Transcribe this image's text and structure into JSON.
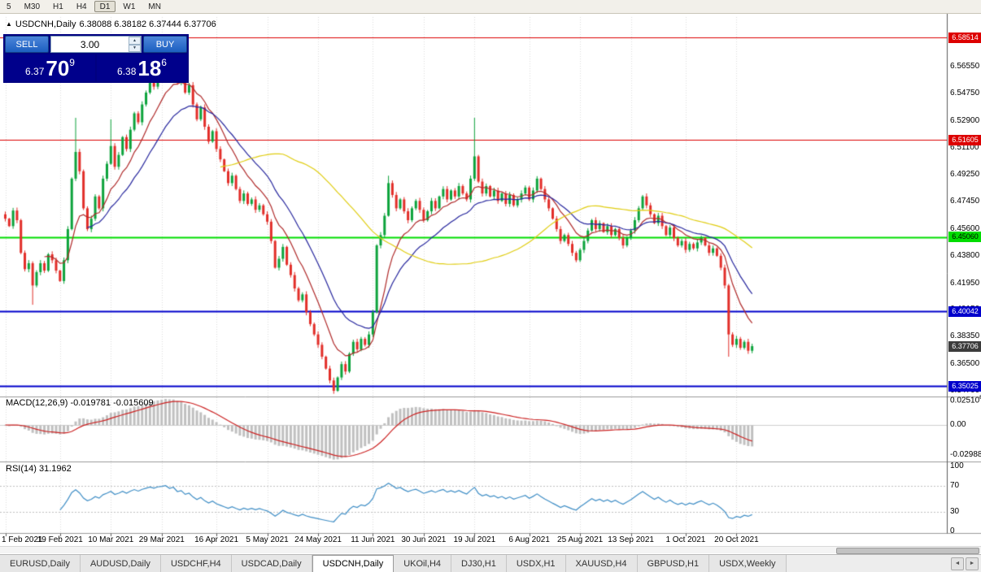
{
  "toolbar": {
    "items": [
      "5",
      "M30",
      "H1",
      "H4",
      "D1",
      "W1",
      "MN"
    ],
    "active": "D1"
  },
  "chart": {
    "header": {
      "marker": "▲",
      "title": "USDCNH,Daily",
      "ohlc": "6.38088 6.38182 6.37444 6.37706"
    },
    "current_price": {
      "label": "6.37706",
      "price": 6.37706,
      "bg": "#3c3c3c",
      "text": "#ffffff"
    },
    "hlines": [
      {
        "price": 6.58514,
        "label": "6.58514",
        "color": "#dd0000",
        "width": 1,
        "text": "#ffffff"
      },
      {
        "price": 6.51605,
        "label": "6.51605",
        "color": "#dd0000",
        "width": 1,
        "text": "#ffffff"
      },
      {
        "price": 6.4506,
        "label": "6.45060",
        "color": "#00dd00",
        "width": 2,
        "text": "#000000"
      },
      {
        "price": 6.40042,
        "label": "6.40042",
        "color": "#0000cc",
        "width": 2,
        "text": "#ffffff"
      },
      {
        "price": 6.35025,
        "label": "6.35025",
        "color": "#0000cc",
        "width": 2,
        "text": "#ffffff"
      }
    ],
    "y_ticks": [
      "6.56550",
      "6.54750",
      "6.52900",
      "6.51100",
      "6.49250",
      "6.47450",
      "6.45600",
      "6.43800",
      "6.41950",
      "6.40150",
      "6.38350",
      "6.36500",
      "6.34700"
    ],
    "macd": {
      "header": "MACD(12,26,9) -0.019781 -0.015609",
      "scale": [
        {
          "t": "0.02510",
          "s": "8",
          "v": 0.025108
        },
        {
          "t": "0.00",
          "s": "",
          "v": 0
        },
        {
          "t": "-0.02988",
          "s": "",
          "v": -0.02988
        }
      ]
    },
    "rsi": {
      "header": "RSI(14) 31.1962",
      "scale": [
        {
          "t": "100",
          "v": 100
        },
        {
          "t": "70",
          "v": 70
        },
        {
          "t": "30",
          "v": 30
        },
        {
          "t": "0",
          "v": 0
        }
      ]
    }
  },
  "trade_panel": {
    "sell_label": "SELL",
    "buy_label": "BUY",
    "lot": "3.00",
    "spin_up": "▲",
    "spin_down": "▼",
    "sell": {
      "small": "6.37",
      "big": "70",
      "sup": "9"
    },
    "buy": {
      "small": "6.38",
      "big": "18",
      "sup": "6"
    }
  },
  "tabs": {
    "items": [
      "EURUSD,Daily",
      "AUDUSD,Daily",
      "USDCHF,H4",
      "USDCAD,Daily",
      "USDCNH,Daily",
      "UKOil,H4",
      "DJ30,H1",
      "USDX,H1",
      "XAUUSD,H4",
      "GBPUSD,H1",
      "USDX,Weekly"
    ],
    "active_index": 4,
    "scroll_left_icon": "◄",
    "scroll_right_icon": "►"
  },
  "chart_data": {
    "type": "candlestick",
    "symbol": "USDCNH",
    "timeframe": "Daily",
    "y_range": [
      6.3437,
      6.5989
    ],
    "first_open": 6.466,
    "closes": [
      6.463,
      6.458,
      6.4685,
      6.462,
      6.44,
      6.429,
      6.433,
      6.418,
      6.427,
      6.433,
      6.428,
      6.439,
      6.435,
      6.428,
      6.421,
      6.435,
      6.456,
      6.49,
      6.508,
      6.495,
      6.47,
      6.456,
      6.463,
      6.478,
      6.47,
      6.49,
      6.5,
      6.512,
      6.498,
      6.506,
      6.518,
      6.51,
      6.523,
      6.534,
      6.528,
      6.54,
      6.548,
      6.556,
      6.552,
      6.561,
      6.565,
      6.57,
      6.562,
      6.568,
      6.555,
      6.56,
      6.548,
      6.553,
      6.54,
      6.53,
      6.538,
      6.525,
      6.515,
      6.522,
      6.51,
      6.503,
      6.495,
      6.487,
      6.492,
      6.483,
      6.475,
      6.48,
      6.473,
      6.476,
      6.469,
      6.472,
      6.466,
      6.461,
      6.448,
      6.43,
      6.436,
      6.444,
      6.432,
      6.425,
      6.416,
      6.408,
      6.412,
      6.4,
      6.392,
      6.385,
      6.378,
      6.37,
      6.362,
      6.354,
      6.347,
      6.356,
      6.365,
      6.36,
      6.372,
      6.38,
      6.375,
      6.382,
      6.378,
      6.385,
      6.4,
      6.445,
      6.452,
      6.465,
      6.487,
      6.479,
      6.47,
      6.476,
      6.468,
      6.462,
      6.47,
      6.475,
      6.469,
      6.462,
      6.468,
      6.475,
      6.47,
      6.478,
      6.483,
      6.476,
      6.482,
      6.478,
      6.485,
      6.48,
      6.476,
      6.49,
      6.505,
      6.488,
      6.48,
      6.485,
      6.478,
      6.482,
      6.475,
      6.48,
      6.473,
      6.479,
      6.472,
      6.476,
      6.48,
      6.484,
      6.476,
      6.482,
      6.49,
      6.483,
      6.476,
      6.47,
      6.463,
      6.456,
      6.448,
      6.452,
      6.446,
      6.44,
      6.435,
      6.442,
      6.448,
      6.455,
      6.462,
      6.456,
      6.46,
      6.454,
      6.458,
      6.452,
      6.456,
      6.45,
      6.445,
      6.45,
      6.455,
      6.462,
      6.47,
      6.478,
      6.472,
      6.466,
      6.46,
      6.465,
      6.458,
      6.452,
      6.457,
      6.45,
      6.445,
      6.448,
      6.442,
      6.446,
      6.443,
      6.447,
      6.45,
      6.445,
      6.44,
      6.443,
      6.438,
      6.43,
      6.418,
      6.385,
      6.378,
      6.382,
      6.376,
      6.38,
      6.374,
      6.3771
    ],
    "extra_wicks": {
      "7": {
        "l": 6.405
      },
      "18": {
        "h": 6.531
      },
      "27": {
        "h": 6.53
      },
      "41": {
        "h": 6.5755
      },
      "84": {
        "l": 6.345
      },
      "98": {
        "h": 6.492
      },
      "120": {
        "h": 6.531
      },
      "185": {
        "l": 6.37
      }
    },
    "x_labels": [
      {
        "label": "1 Feb 2021",
        "i": 0
      },
      {
        "label": "19 Feb 2021",
        "i": 14
      },
      {
        "label": "10 Mar 2021",
        "i": 27
      },
      {
        "label": "29 Mar 2021",
        "i": 40
      },
      {
        "label": "16 Apr 2021",
        "i": 54
      },
      {
        "label": "5 May 2021",
        "i": 67
      },
      {
        "label": "24 May 2021",
        "i": 80
      },
      {
        "label": "11 Jun 2021",
        "i": 94
      },
      {
        "label": "30 Jun 2021",
        "i": 107
      },
      {
        "label": "19 Jul 2021",
        "i": 120
      },
      {
        "label": "6 Aug 2021",
        "i": 134
      },
      {
        "label": "25 Aug 2021",
        "i": 147
      },
      {
        "label": "13 Sep 2021",
        "i": 160
      },
      {
        "label": "1 Oct 2021",
        "i": 174
      },
      {
        "label": "20 Oct 2021",
        "i": 187
      }
    ],
    "moving_averages": [
      {
        "type": "ema",
        "period": 10,
        "color": "#b02a2a"
      },
      {
        "type": "ema",
        "period": 21,
        "color": "#27279e"
      },
      {
        "type": "sma",
        "period": 55,
        "color": "#e0cd10"
      }
    ],
    "indicators": {
      "macd": {
        "fast": 12,
        "slow": 26,
        "signal": 9,
        "last": "-0.019781",
        "last_signal": "-0.015609"
      },
      "rsi": {
        "period": 14,
        "last": "31.1962",
        "levels": [
          70,
          30
        ]
      }
    },
    "style": {
      "up": "#0da33c",
      "down": "#e22e29",
      "grid": "#dcdcdc",
      "macd_hist": "#c0c0c0",
      "macd_signal": "#cc2222",
      "rsi_line": "#3f8ec6",
      "rsi_level": "#c0c0c0",
      "separator": "#9a9a9a",
      "scale_line": "#5a5a5a"
    }
  }
}
